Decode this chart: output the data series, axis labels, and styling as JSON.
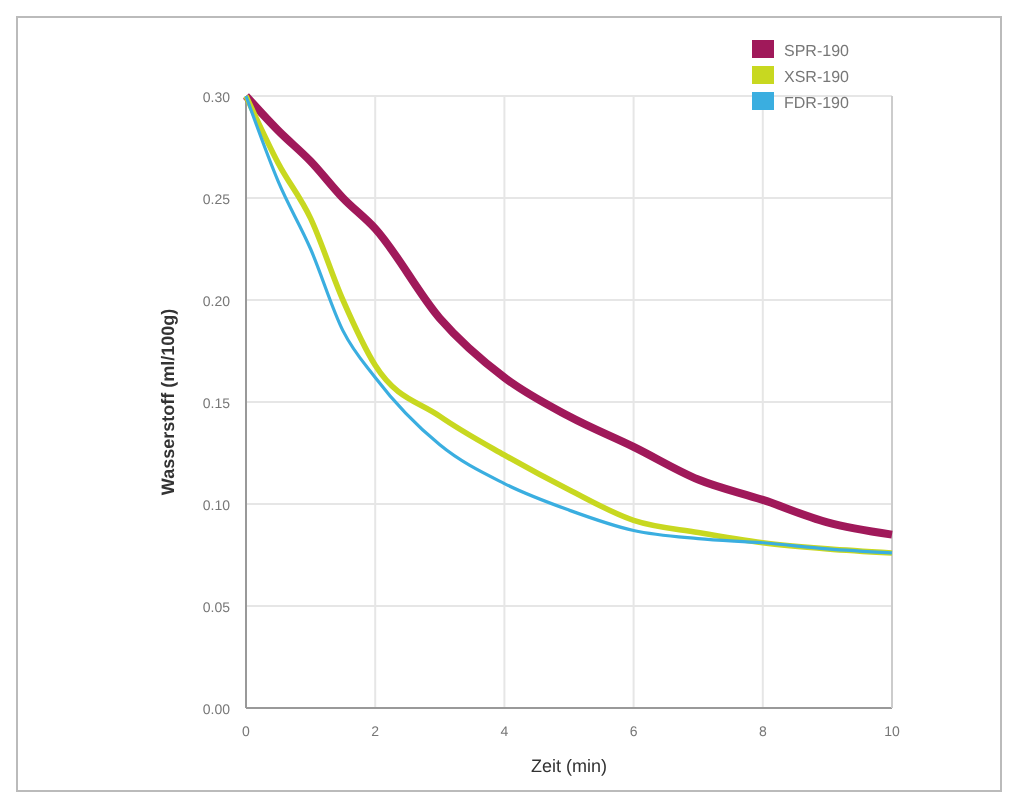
{
  "chart_data": {
    "type": "line",
    "xlabel": "Zeit (min)",
    "ylabel": "Wasserstoff (ml/100g)",
    "x": [
      0,
      0.5,
      1,
      1.5,
      2,
      3,
      4,
      5,
      6,
      7,
      8,
      9,
      10
    ],
    "series": [
      {
        "name": "SPR-190",
        "color": "#a0195a",
        "values": [
          0.3,
          0.283,
          0.268,
          0.25,
          0.235,
          0.191,
          0.162,
          0.143,
          0.128,
          0.112,
          0.102,
          0.091,
          0.085
        ]
      },
      {
        "name": "XSR-190",
        "color": "#c8d820",
        "values": [
          0.3,
          0.267,
          0.24,
          0.2,
          0.168,
          0.143,
          0.124,
          0.107,
          0.092,
          0.086,
          0.081,
          0.078,
          0.076
        ]
      },
      {
        "name": "FDR-190",
        "color": "#3aaee0",
        "values": [
          0.3,
          0.258,
          0.225,
          0.185,
          0.162,
          0.129,
          0.11,
          0.097,
          0.087,
          0.083,
          0.081,
          0.078,
          0.076
        ]
      }
    ],
    "xlim": [
      0,
      10
    ],
    "xticks": [
      0,
      2,
      4,
      6,
      8,
      10
    ],
    "ylim": [
      0,
      0.3
    ],
    "yticks": [
      {
        "value": 0,
        "label": "0.00"
      },
      {
        "value": 0.05,
        "label": "0.05"
      },
      {
        "value": 0.1,
        "label": "0.10"
      },
      {
        "value": 0.15,
        "label": "0.15"
      },
      {
        "value": 0.2,
        "label": "0.20"
      },
      {
        "value": 0.25,
        "label": "0.25"
      },
      {
        "value": 0.3,
        "label": "0.30"
      }
    ],
    "grid": true,
    "legend": "top right",
    "marker": "none",
    "line_style": "solid"
  }
}
